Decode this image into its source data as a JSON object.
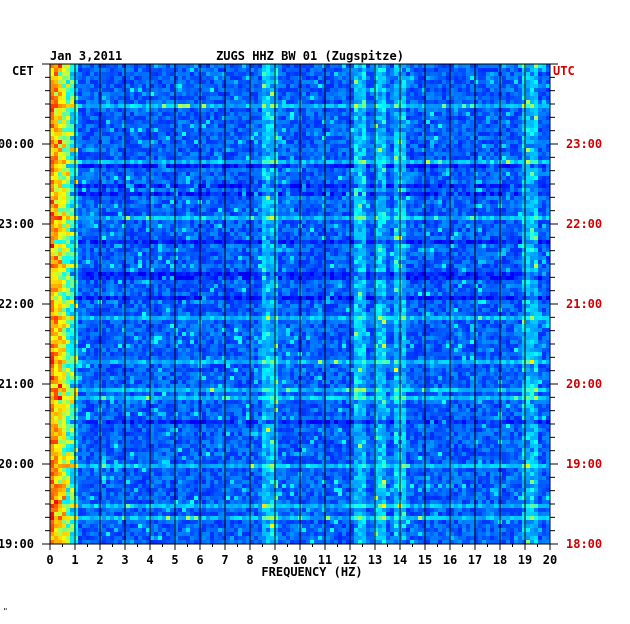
{
  "chart_data": {
    "type": "heatmap",
    "title": "ZUGS HHZ BW 01 (Zugspitze)",
    "date": "Jan 3,2011",
    "xlabel": "FREQUENCY (HZ)",
    "xlim": [
      0,
      20
    ],
    "x_ticks": [
      "0",
      "1",
      "2",
      "3",
      "4",
      "5",
      "6",
      "7",
      "8",
      "9",
      "10",
      "11",
      "12",
      "13",
      "14",
      "15",
      "16",
      "17",
      "18",
      "19",
      "20"
    ],
    "left_axis": {
      "label": "CET",
      "ticks": [
        "00:00",
        "23:00",
        "22:00",
        "21:00",
        "20:00",
        "19:00"
      ],
      "color": "#000000"
    },
    "right_axis": {
      "label": "UTC",
      "ticks": [
        "23:00",
        "22:00",
        "21:00",
        "20:00",
        "19:00",
        "18:00"
      ],
      "color": "#cc0000"
    },
    "time_range_hours": 6,
    "colormap": [
      "#000080",
      "#0000ff",
      "#0080ff",
      "#00ffff",
      "#ffff00",
      "#ff8000",
      "#ff0000"
    ],
    "background_color": "#0000b4",
    "dominant_frequencies_hz": [
      0.3,
      0.5,
      8.8,
      12.4,
      13.2,
      14.0,
      19.2
    ],
    "footer_mark": "\""
  }
}
